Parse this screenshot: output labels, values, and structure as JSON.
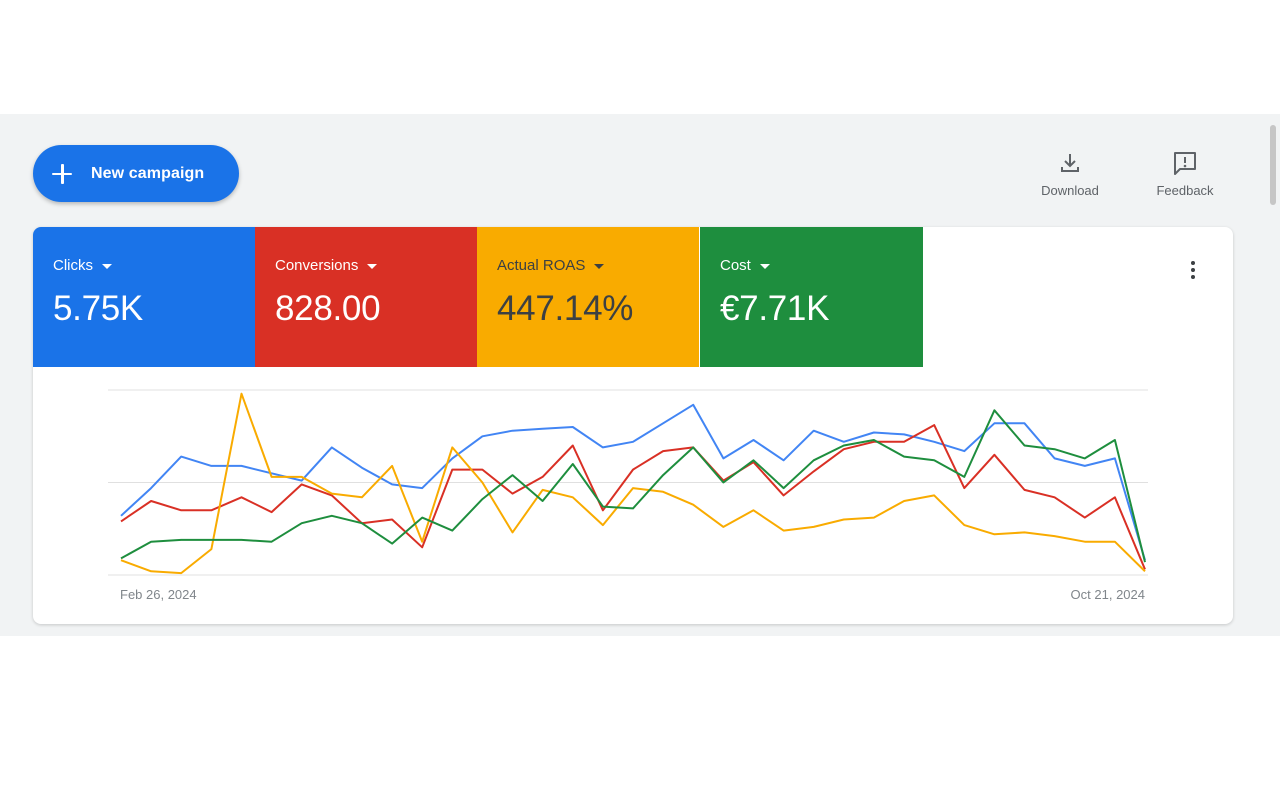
{
  "toolbar": {
    "new_campaign_label": "New campaign",
    "download_label": "Download",
    "feedback_label": "Feedback"
  },
  "metrics": [
    {
      "label": "Clicks",
      "value": "5.75K",
      "color": "#1a73e8"
    },
    {
      "label": "Conversions",
      "value": "828.00",
      "color": "#d93025"
    },
    {
      "label": "Actual ROAS",
      "value": "447.14%",
      "color": "#f9ab00"
    },
    {
      "label": "Cost",
      "value": "€7.71K",
      "color": "#1e8e3e"
    }
  ],
  "chart_data": {
    "type": "line",
    "x_start_label": "Feb 26, 2024",
    "x_end_label": "Oct 21, 2024",
    "grid": true,
    "ylim": [
      0,
      100
    ],
    "series": [
      {
        "color": "#4285f4",
        "values": [
          32,
          47,
          64,
          59,
          59,
          55,
          51,
          69,
          58,
          49,
          47,
          63,
          75,
          78,
          79,
          80,
          69,
          72,
          82,
          92,
          63,
          73,
          62,
          78,
          72,
          77,
          76,
          72,
          67,
          82,
          82,
          63,
          59,
          63,
          8
        ]
      },
      {
        "color": "#d93025",
        "values": [
          29,
          40,
          35,
          35,
          42,
          34,
          49,
          43,
          28,
          30,
          15,
          57,
          57,
          44,
          53,
          70,
          35,
          57,
          67,
          69,
          51,
          61,
          43,
          56,
          68,
          72,
          72,
          81,
          47,
          65,
          46,
          42,
          31,
          42,
          3
        ]
      },
      {
        "color": "#f9ab00",
        "values": [
          8,
          2,
          1,
          14,
          98,
          53,
          53,
          44,
          42,
          59,
          18,
          69,
          50,
          23,
          46,
          42,
          27,
          47,
          45,
          38,
          26,
          35,
          24,
          26,
          30,
          31,
          40,
          43,
          27,
          22,
          23,
          21,
          18,
          18,
          2
        ]
      },
      {
        "color": "#1e8e3e",
        "values": [
          9,
          18,
          19,
          19,
          19,
          18,
          28,
          32,
          28,
          17,
          31,
          24,
          41,
          54,
          40,
          60,
          37,
          36,
          54,
          69,
          50,
          62,
          47,
          62,
          70,
          73,
          64,
          62,
          53,
          89,
          70,
          68,
          63,
          73,
          7
        ]
      }
    ]
  }
}
